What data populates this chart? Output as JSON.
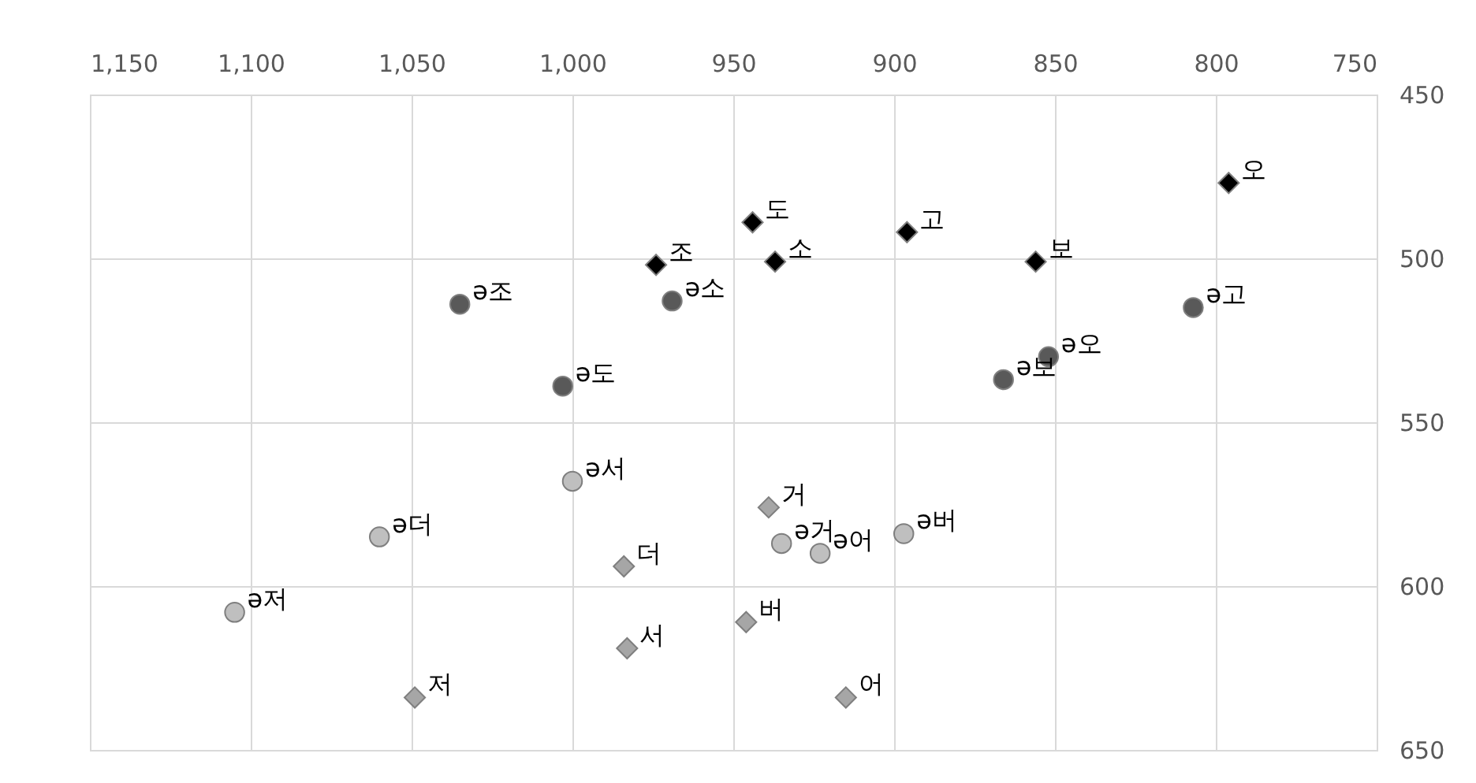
{
  "chart_data": {
    "type": "scatter",
    "xlim": [
      1150,
      750
    ],
    "xticks": [
      {
        "value": 1150,
        "label": "1,150"
      },
      {
        "value": 1100,
        "label": "1,100"
      },
      {
        "value": 1050,
        "label": "1,050"
      },
      {
        "value": 1000,
        "label": "1,000"
      },
      950,
      900,
      850,
      800,
      750
    ],
    "ylim": [
      650,
      450
    ],
    "yticks": [
      450,
      500,
      550,
      600,
      650
    ],
    "grid": true,
    "series": [
      {
        "color": "#000000",
        "marker": "diamond",
        "x": [
          796,
          896,
          856,
          944,
          937,
          974
        ],
        "values": [
          477,
          492,
          501,
          489,
          501,
          502
        ]
      },
      {
        "color": "#595959",
        "marker": "circle",
        "x": [
          1035,
          969,
          1003,
          807,
          852,
          866
        ],
        "values": [
          514,
          513,
          539,
          515,
          530,
          537
        ]
      },
      {
        "color": "#bfbfbf",
        "marker": "circle",
        "x": [
          1000,
          1060,
          1105,
          935,
          923,
          897
        ],
        "values": [
          568,
          585,
          608,
          587,
          590,
          584
        ]
      },
      {
        "color": "#a6a6a6",
        "marker": "diamond",
        "x": [
          939,
          984,
          983,
          946,
          1049,
          915
        ],
        "values": [
          576,
          594,
          619,
          611,
          634,
          634
        ]
      }
    ],
    "annotations": [
      {
        "text": "오",
        "x": 796,
        "y": 477
      },
      {
        "text": "고",
        "x": 896,
        "y": 492
      },
      {
        "text": "보",
        "x": 856,
        "y": 501
      },
      {
        "text": "도",
        "x": 944,
        "y": 489
      },
      {
        "text": "소",
        "x": 937,
        "y": 501
      },
      {
        "text": "조",
        "x": 974,
        "y": 502
      },
      {
        "text": "ə조",
        "x": 1035,
        "y": 514
      },
      {
        "text": "ə소",
        "x": 969,
        "y": 513
      },
      {
        "text": "ə도",
        "x": 1003,
        "y": 539
      },
      {
        "text": "ə고",
        "x": 807,
        "y": 515
      },
      {
        "text": "ə오",
        "x": 852,
        "y": 530
      },
      {
        "text": "ə보",
        "x": 866,
        "y": 537
      },
      {
        "text": "ə서",
        "x": 1000,
        "y": 568
      },
      {
        "text": "ə더",
        "x": 1060,
        "y": 585
      },
      {
        "text": "ə저",
        "x": 1105,
        "y": 608
      },
      {
        "text": "ə거",
        "x": 935,
        "y": 587
      },
      {
        "text": "ə어",
        "x": 923,
        "y": 590
      },
      {
        "text": "ə버",
        "x": 897,
        "y": 584
      },
      {
        "text": "거",
        "x": 939,
        "y": 576
      },
      {
        "text": "더",
        "x": 984,
        "y": 594
      },
      {
        "text": "서",
        "x": 983,
        "y": 619
      },
      {
        "text": "버",
        "x": 946,
        "y": 611
      },
      {
        "text": "저",
        "x": 1049,
        "y": 634
      },
      {
        "text": "어",
        "x": 915,
        "y": 634
      }
    ]
  }
}
